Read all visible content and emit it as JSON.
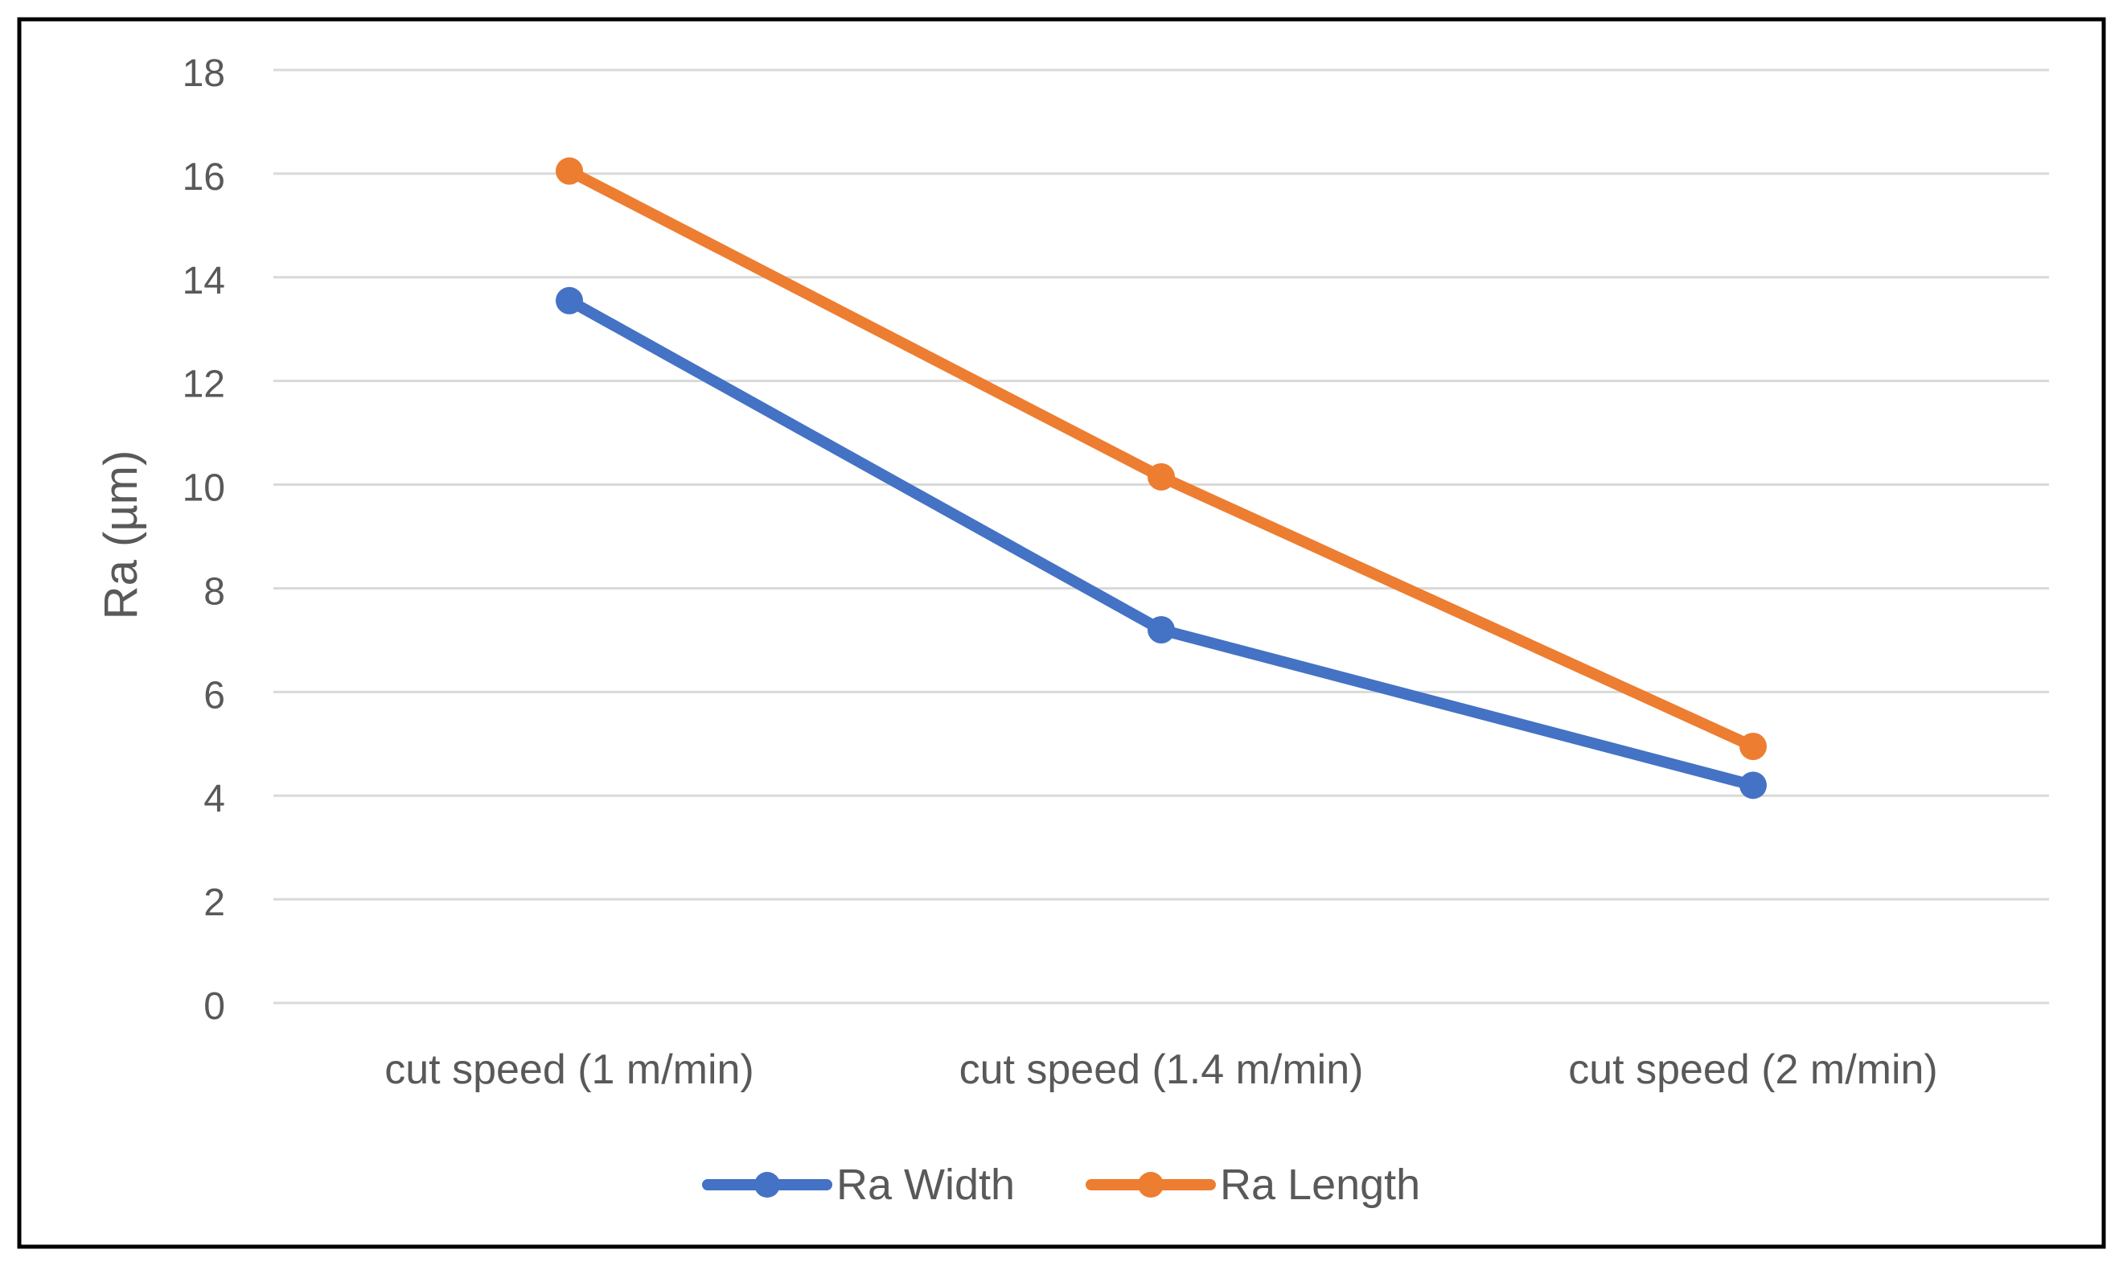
{
  "chart_data": {
    "type": "line",
    "title": "",
    "xlabel": "",
    "ylabel": "Ra (µm)",
    "categories": [
      "cut speed (1 m/min)",
      "cut speed (1.4 m/min)",
      "cut speed (2 m/min)"
    ],
    "ylim": [
      0,
      18
    ],
    "yticks": [
      0,
      2,
      4,
      6,
      8,
      10,
      12,
      14,
      16,
      18
    ],
    "grid": true,
    "legend_position": "bottom",
    "series": [
      {
        "name": "Ra Width",
        "color": "#4472C4",
        "values": [
          13.55,
          7.2,
          4.2
        ]
      },
      {
        "name": "Ra Length",
        "color": "#ED7D31",
        "values": [
          16.05,
          10.15,
          4.95
        ]
      }
    ]
  }
}
